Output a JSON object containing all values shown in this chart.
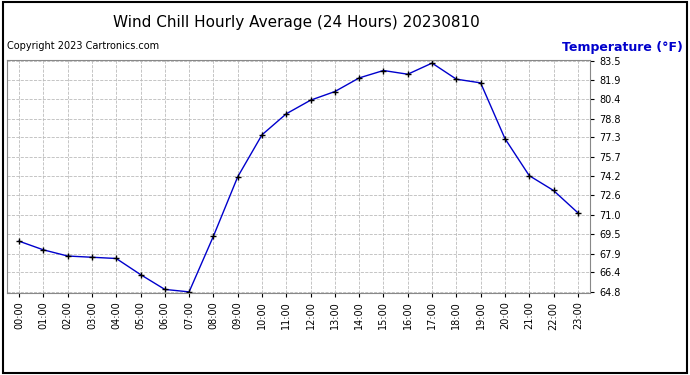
{
  "title": "Wind Chill Hourly Average (24 Hours) 20230810",
  "copyright_text": "Copyright 2023 Cartronics.com",
  "ylabel": "Temperature (°F)",
  "hours": [
    0,
    1,
    2,
    3,
    4,
    5,
    6,
    7,
    8,
    9,
    10,
    11,
    12,
    13,
    14,
    15,
    16,
    17,
    18,
    19,
    20,
    21,
    22,
    23
  ],
  "hour_labels": [
    "00:00",
    "01:00",
    "02:00",
    "03:00",
    "04:00",
    "05:00",
    "06:00",
    "07:00",
    "08:00",
    "09:00",
    "10:00",
    "11:00",
    "12:00",
    "13:00",
    "14:00",
    "15:00",
    "16:00",
    "17:00",
    "18:00",
    "19:00",
    "20:00",
    "21:00",
    "22:00",
    "23:00"
  ],
  "values": [
    68.9,
    68.2,
    67.7,
    67.6,
    67.5,
    66.2,
    65.0,
    64.8,
    69.3,
    74.1,
    77.5,
    79.2,
    80.3,
    81.0,
    82.1,
    82.7,
    82.4,
    83.3,
    82.0,
    81.7,
    77.2,
    74.2,
    73.0,
    71.2
  ],
  "ylim_min": 64.8,
  "ylim_max": 83.5,
  "yticks": [
    64.8,
    66.4,
    67.9,
    69.5,
    71.0,
    72.6,
    74.2,
    75.7,
    77.3,
    78.8,
    80.4,
    81.9,
    83.5
  ],
  "line_color": "#0000cc",
  "marker": "+",
  "marker_color": "#000000",
  "background_color": "#ffffff",
  "grid_color": "#bbbbbb",
  "title_fontsize": 11,
  "copyright_fontsize": 7,
  "ylabel_fontsize": 9,
  "tick_fontsize": 7,
  "ylabel_color": "#0000cc"
}
